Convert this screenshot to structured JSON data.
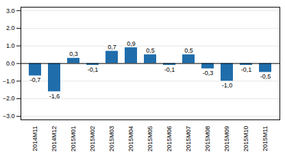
{
  "chart_data": {
    "type": "bar",
    "categories": [
      "2014M11",
      "2014M12",
      "2015M01",
      "2015M02",
      "2015M03",
      "2015M04",
      "2015M05",
      "2015M06",
      "2015M07",
      "2015M08",
      "2015M09",
      "2015M10",
      "2015M11"
    ],
    "values": [
      -0.7,
      -1.6,
      0.3,
      -0.1,
      0.7,
      0.9,
      0.5,
      -0.1,
      0.5,
      -0.3,
      -1.0,
      -0.1,
      -0.5
    ],
    "value_labels": [
      "-0,7",
      "-1,6",
      "0,3",
      "-0,1",
      "0,7",
      "0,9",
      "0,5",
      "-0,1",
      "0,5",
      "-0,3",
      "-1,0",
      "-0,1",
      "-0,5"
    ],
    "color": "#1F6DAB",
    "ylim": [
      -3.2,
      3.2
    ],
    "yticks": [
      -3,
      -2,
      -1,
      0,
      1,
      2,
      3
    ],
    "grid": true,
    "data_labels": true
  }
}
